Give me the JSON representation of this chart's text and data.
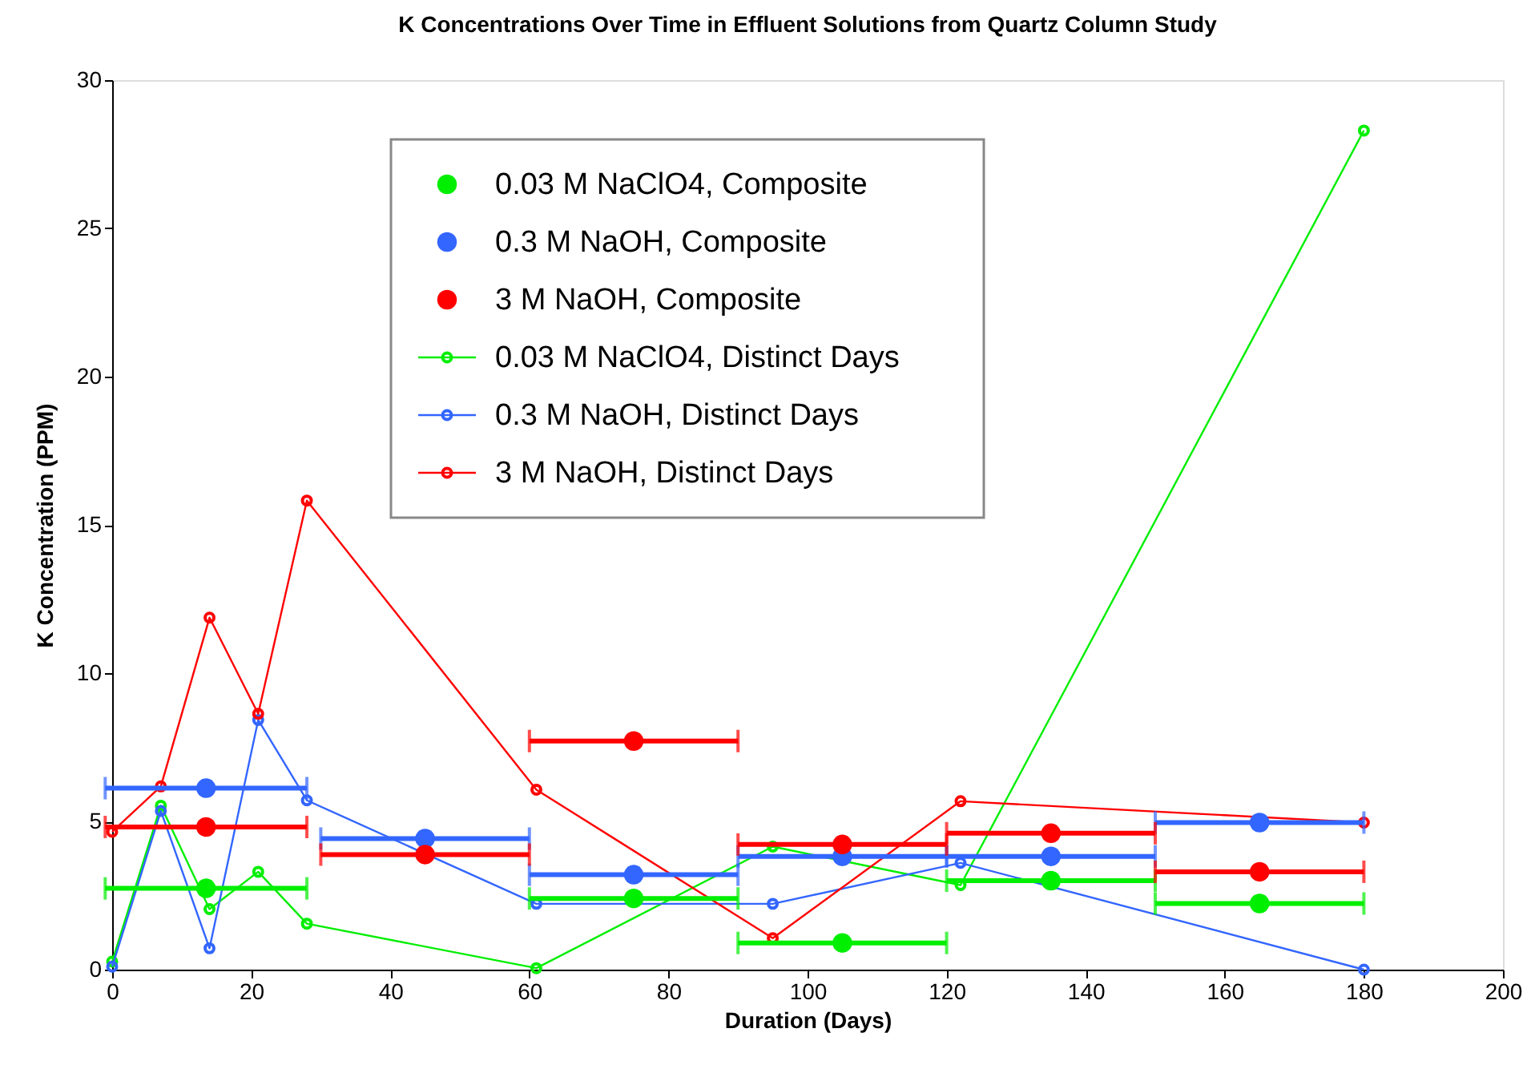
{
  "chart_data": {
    "type": "line",
    "title": "K Concentrations Over Time in Effluent Solutions from Quartz Column Study",
    "xlabel": "Duration (Days)",
    "ylabel": "K Concentration (PPM)",
    "xlim": [
      0,
      200
    ],
    "xticks": [
      0,
      20,
      40,
      60,
      80,
      100,
      120,
      140,
      160,
      180,
      200
    ],
    "ylim": [
      0,
      30
    ],
    "yticks": [
      0,
      5,
      10,
      15,
      20,
      25,
      30
    ],
    "grid": false,
    "legend": "top",
    "marker": "circle",
    "line_style": "solid",
    "series": [
      {
        "name": "0.03 M NaClO4, Composite",
        "type": "scatter",
        "color": "#00ee00",
        "x": [
          13.5,
          75,
          105,
          135,
          165
        ],
        "values": [
          2.74,
          2.4,
          0.9,
          3.0,
          2.23
        ],
        "xerrors": [
          14.5,
          15,
          15,
          15,
          15
        ]
      },
      {
        "name": "0.3 M NaOH, Composite",
        "type": "scatter",
        "color": "#3366ff",
        "x": [
          13.5,
          45,
          75,
          105,
          135,
          165
        ],
        "values": [
          6.12,
          4.42,
          3.2,
          3.82,
          3.82,
          4.96
        ],
        "xerrors": [
          14.5,
          15,
          15,
          15,
          15,
          15
        ]
      },
      {
        "name": "3 M NaOH, Composite",
        "type": "scatter",
        "color": "#ff0000",
        "x": [
          13.5,
          45,
          75,
          105,
          135,
          165
        ],
        "values": [
          4.81,
          3.88,
          7.71,
          4.22,
          4.6,
          3.3
        ],
        "xerrors": [
          14.5,
          15,
          15,
          15,
          15,
          15
        ]
      },
      {
        "name": "0.03 M NaClO4, Distinct Days",
        "color": "#00ee00",
        "x": [
          0,
          7,
          14,
          21,
          28,
          61,
          95,
          122,
          180
        ],
        "values": [
          0.27,
          5.53,
          2.04,
          3.3,
          1.55,
          0.05,
          4.15,
          2.85,
          28.3
        ]
      },
      {
        "name": "0.3 M NaOH, Distinct Days",
        "color": "#3366ff",
        "x": [
          0,
          7,
          14,
          21,
          28,
          61,
          95,
          122,
          180
        ],
        "values": [
          0.1,
          5.35,
          0.72,
          8.42,
          5.71,
          2.22,
          2.22,
          3.6,
          0
        ]
      },
      {
        "name": "3 M NaOH, Distinct Days",
        "color": "#ff0000",
        "x": [
          0,
          7,
          14,
          21,
          28,
          61,
          95,
          122,
          180
        ],
        "values": [
          4.65,
          6.18,
          11.87,
          8.63,
          15.82,
          6.07,
          1.06,
          5.68,
          4.96
        ]
      }
    ]
  }
}
